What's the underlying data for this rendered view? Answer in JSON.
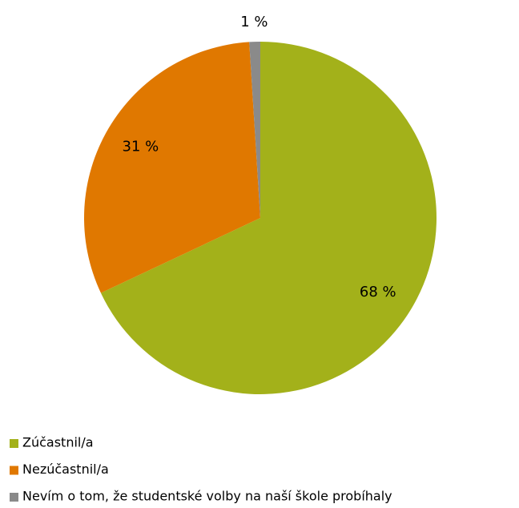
{
  "chart_data": {
    "type": "pie",
    "categories": [
      "Zúčastnil/a",
      "Nezúčastnil/a",
      "Nevím o tom, že studentské volby na naší škole probíhaly"
    ],
    "values": [
      68,
      31,
      1
    ],
    "value_labels": [
      "68 %",
      "31 %",
      "1 %"
    ],
    "colors": [
      "#a3b11a",
      "#e07800",
      "#8a8a8a"
    ]
  }
}
